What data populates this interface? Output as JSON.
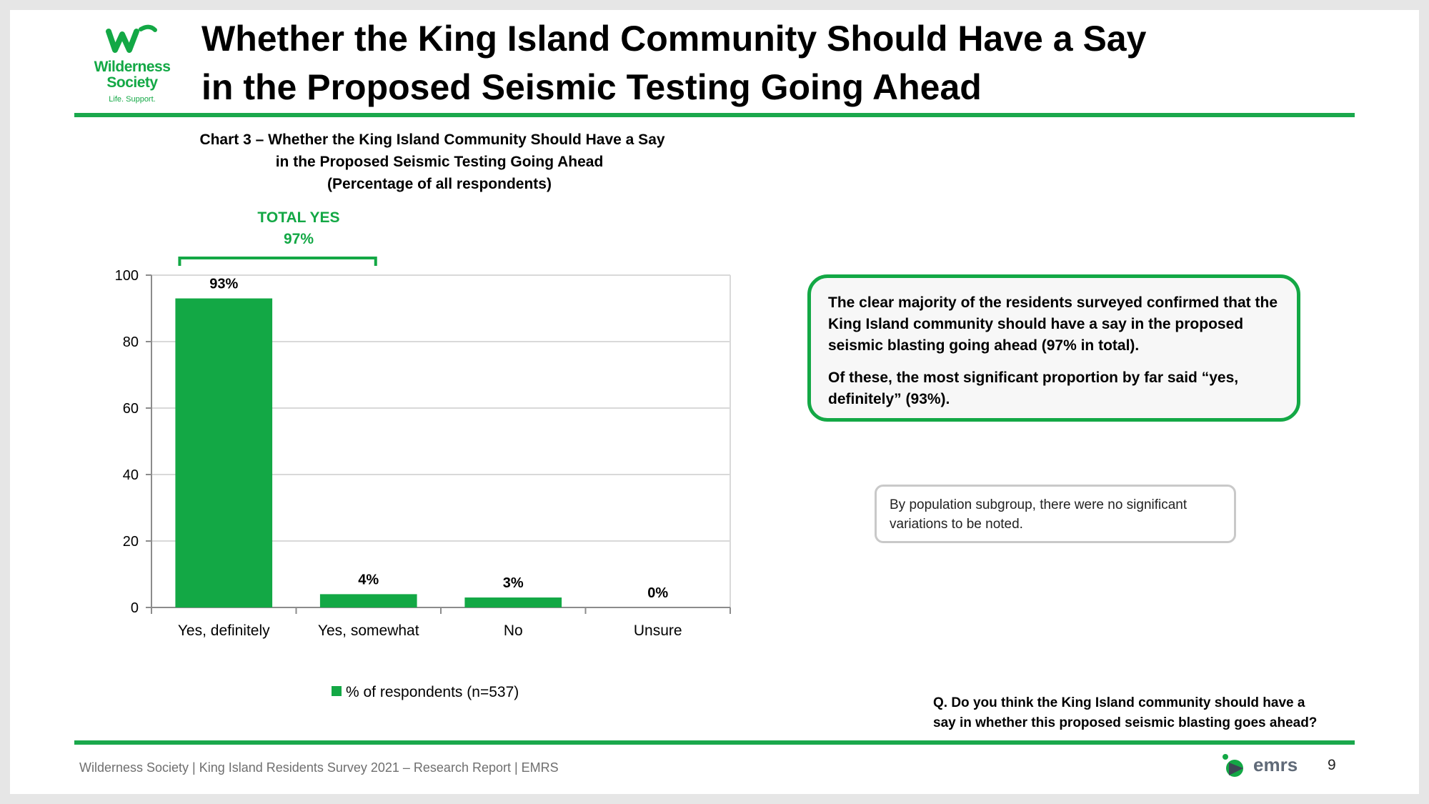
{
  "logo": {
    "word_line1": "Wilderness",
    "word_line2": "Society",
    "tagline": "Life. Support.",
    "icon": "wilderness-society-w-logo",
    "color": "#13a845"
  },
  "title": {
    "line1": "Whether the King Island Community Should Have a Say",
    "line2": "in the Proposed Seismic Testing Going Ahead"
  },
  "chart_heading": {
    "line1": "Chart 3 – Whether the King Island Community Should Have a Say",
    "line2": "in the Proposed Seismic Testing Going Ahead",
    "line3": "(Percentage of all respondents)"
  },
  "total_yes": {
    "label": "TOTAL YES",
    "value": "97%"
  },
  "chart_data": {
    "type": "bar",
    "categories": [
      "Yes, definitely",
      "Yes, somewhat",
      "No",
      "Unsure"
    ],
    "series": [
      {
        "name": "% of respondents (n=537)",
        "values": [
          93,
          4,
          3,
          0
        ],
        "color": "#13a845"
      }
    ],
    "data_labels": [
      "93%",
      "4%",
      "3%",
      "0%"
    ],
    "yticks": [
      0,
      20,
      40,
      60,
      80,
      100
    ],
    "ylim": [
      0,
      100
    ],
    "grid": true,
    "legend": "bottom"
  },
  "callout": {
    "para1": "The clear majority of the residents surveyed confirmed that the King Island community should have a say in the proposed seismic blasting going ahead (97% in total).",
    "para2": "Of these, the most significant proportion by far said “yes, definitely” (93%)."
  },
  "note": "By population subgroup, there were no significant variations to be noted.",
  "question": {
    "line1": "Q. Do you think the King Island community should have a",
    "line2": "say in whether this proposed seismic blasting goes ahead?"
  },
  "footer": {
    "text": "Wilderness Society | King Island Residents Survey 2021 – Research Report | EMRS",
    "brand": "emrs",
    "brand_icon": "emrs-logo-icon",
    "page_number": "9"
  },
  "colors": {
    "accent": "#13a845",
    "rule": "#1aa84c"
  }
}
